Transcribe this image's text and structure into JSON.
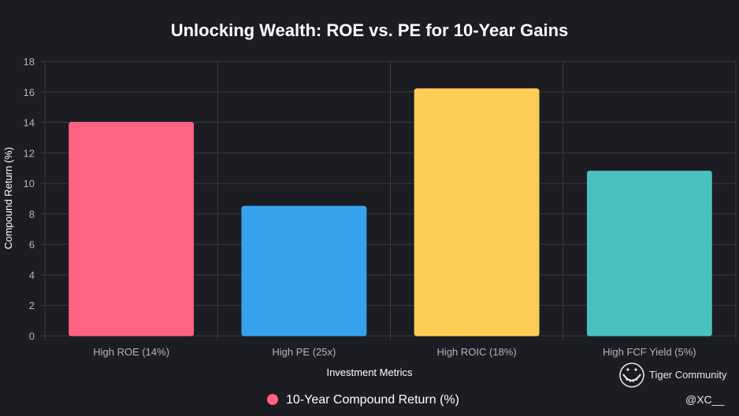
{
  "chart_data": {
    "type": "bar",
    "title": "Unlocking Wealth: ROE vs. PE for 10-Year Gains",
    "xlabel": "Investment Metrics",
    "ylabel": "Compound Return (%)",
    "ylim": [
      0,
      18
    ],
    "yticks": [
      0,
      2,
      4,
      6,
      8,
      10,
      12,
      14,
      16,
      18
    ],
    "grid": true,
    "legend_position": "bottom",
    "categories": [
      "High ROE (14%)",
      "High PE (25x)",
      "High ROIC (18%)",
      "High FCF Yield (5%)"
    ],
    "series": [
      {
        "name": "10-Year Compound Return (%)",
        "values": [
          14,
          8.5,
          16.2,
          10.8
        ],
        "colors": [
          "#ff6384",
          "#36a2eb",
          "#ffcd56",
          "#4bc0c0"
        ]
      }
    ]
  },
  "watermark": {
    "brand": "Tiger Community",
    "handle": "@XC__",
    "icon": "tiger-logo-icon"
  }
}
